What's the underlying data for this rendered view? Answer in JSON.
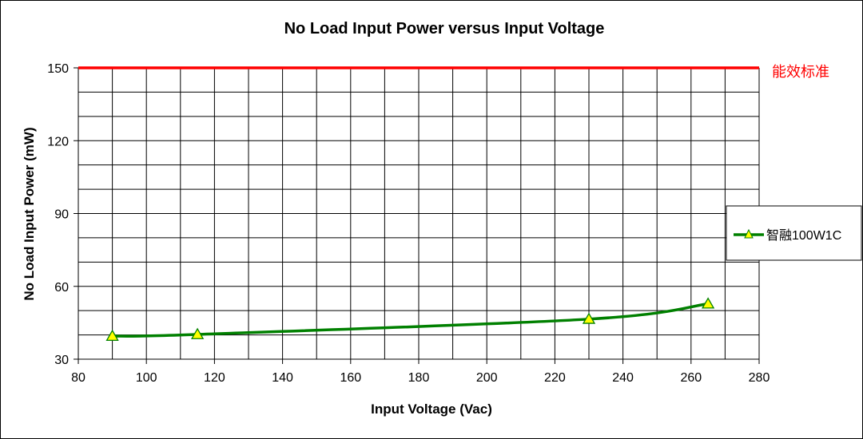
{
  "chart_data": {
    "type": "line",
    "title": "No Load Input Power versus Input Voltage",
    "xlabel": "Input Voltage (Vac)",
    "ylabel": "No Load Input Power (mW)",
    "xlim": [
      80,
      280
    ],
    "ylim": [
      30,
      150
    ],
    "x_ticks": [
      "80",
      "100",
      "120",
      "140",
      "160",
      "180",
      "200",
      "220",
      "240",
      "260",
      "280"
    ],
    "y_ticks": [
      "30",
      "60",
      "90",
      "120",
      "150"
    ],
    "grid": true,
    "legend_position": "right",
    "series": [
      {
        "name": "智融100W1C",
        "color": "#008000",
        "marker": "triangle",
        "marker_color": "#ffff00",
        "x": [
          90,
          115,
          230,
          265
        ],
        "y": [
          39.5,
          40.2,
          46.5,
          52.8
        ]
      }
    ],
    "reference_line": {
      "label": "能效标准",
      "y": 150,
      "color": "#ff0000"
    }
  }
}
